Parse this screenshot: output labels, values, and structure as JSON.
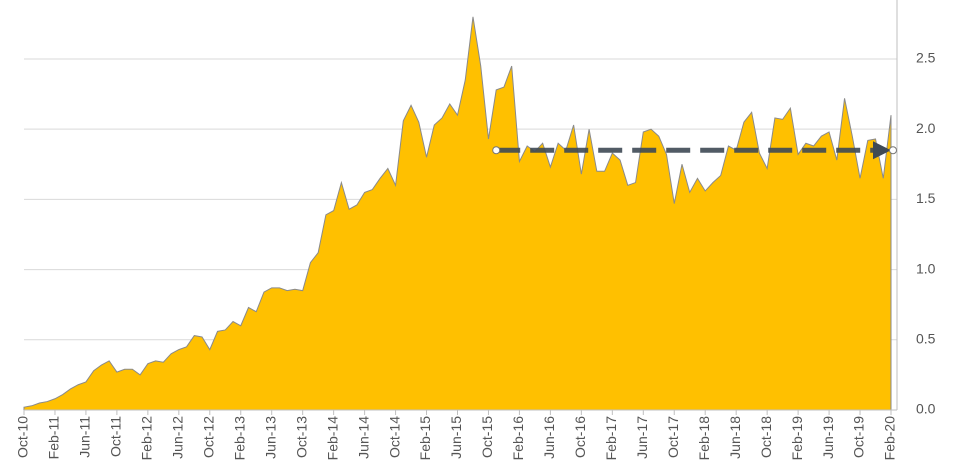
{
  "chart_data": {
    "type": "area",
    "categories": [
      "Oct-10",
      null,
      null,
      null,
      "Feb-11",
      null,
      null,
      null,
      "Jun-11",
      null,
      null,
      null,
      "Oct-11",
      null,
      null,
      null,
      "Feb-12",
      null,
      null,
      null,
      "Jun-12",
      null,
      null,
      null,
      "Oct-12",
      null,
      null,
      null,
      "Feb-13",
      null,
      null,
      null,
      "Jun-13",
      null,
      null,
      null,
      "Oct-13",
      null,
      null,
      null,
      "Feb-14",
      null,
      null,
      null,
      "Jun-14",
      null,
      null,
      null,
      "Oct-14",
      null,
      null,
      null,
      "Feb-15",
      null,
      null,
      null,
      "Jun-15",
      null,
      null,
      null,
      "Oct-15",
      null,
      null,
      null,
      "Feb-16",
      null,
      null,
      null,
      "Jun-16",
      null,
      null,
      null,
      "Oct-16",
      null,
      null,
      null,
      "Feb-17",
      null,
      null,
      null,
      "Jun-17",
      null,
      null,
      null,
      "Oct-17",
      null,
      null,
      null,
      "Feb-18",
      null,
      null,
      null,
      "Jun-18",
      null,
      null,
      null,
      "Oct-18",
      null,
      null,
      null,
      "Feb-19",
      null,
      null,
      null,
      "Jun-19",
      null,
      null,
      null,
      "Oct-19",
      null,
      null,
      null,
      "Feb-20"
    ],
    "values": [
      0.02,
      0.03,
      0.05,
      0.06,
      0.08,
      0.11,
      0.15,
      0.18,
      0.2,
      0.28,
      0.32,
      0.35,
      0.27,
      0.29,
      0.29,
      0.25,
      0.33,
      0.35,
      0.34,
      0.4,
      0.43,
      0.45,
      0.53,
      0.52,
      0.43,
      0.56,
      0.57,
      0.63,
      0.6,
      0.73,
      0.7,
      0.84,
      0.87,
      0.87,
      0.85,
      0.86,
      0.85,
      1.05,
      1.12,
      1.39,
      1.42,
      1.62,
      1.43,
      1.46,
      1.55,
      1.57,
      1.65,
      1.72,
      1.6,
      2.06,
      2.17,
      2.05,
      1.8,
      2.03,
      2.08,
      2.18,
      2.1,
      2.35,
      2.8,
      2.45,
      1.93,
      2.28,
      2.3,
      2.45,
      1.77,
      1.88,
      1.84,
      1.9,
      1.73,
      1.9,
      1.85,
      2.03,
      1.68,
      2.0,
      1.7,
      1.7,
      1.83,
      1.78,
      1.6,
      1.62,
      1.98,
      2.0,
      1.95,
      1.82,
      1.47,
      1.75,
      1.55,
      1.65,
      1.56,
      1.62,
      1.67,
      1.88,
      1.85,
      2.05,
      2.12,
      1.83,
      1.72,
      2.08,
      2.07,
      2.15,
      1.82,
      1.9,
      1.88,
      1.95,
      1.98,
      1.78,
      2.22,
      1.95,
      1.65,
      1.92,
      1.93,
      1.65,
      2.1
    ],
    "color": "#FFC000",
    "ylim": [
      0,
      2.92
    ],
    "yticks": [
      {
        "value": 0,
        "label": "0.0"
      },
      0.5,
      {
        "value": 1,
        "label": "1.0"
      },
      1.5,
      {
        "value": 2,
        "label": "2.0"
      },
      2.5
    ],
    "grid": true,
    "reference_line": {
      "value": 1.85,
      "from": 61,
      "to": 112
    }
  }
}
